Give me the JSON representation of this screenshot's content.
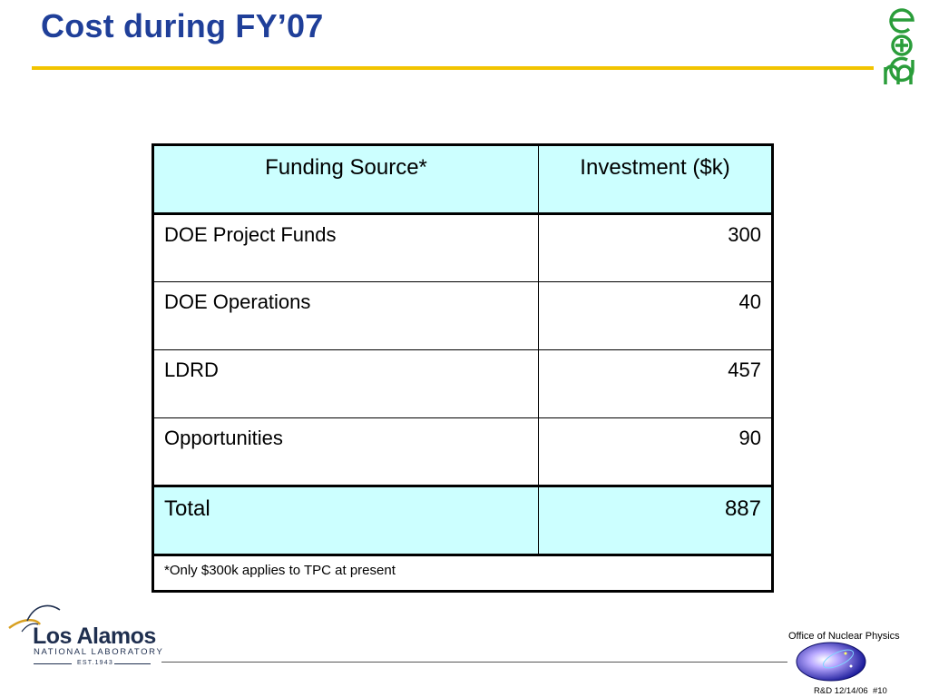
{
  "header": {
    "title": "Cost during FY’07",
    "logo_icon": "edm-logo-icon",
    "logo_letters": [
      "e",
      "+",
      "d",
      "m"
    ],
    "accent_color": "#f2c400",
    "title_color": "#1f3f99",
    "logo_color": "#2a9d3a"
  },
  "table": {
    "columns": [
      "Funding Source*",
      "Investment ($k)"
    ],
    "rows": [
      {
        "source": "DOE Project Funds",
        "investment": "300"
      },
      {
        "source": "DOE Operations",
        "investment": "40"
      },
      {
        "source": "LDRD",
        "investment": "457"
      },
      {
        "source": "Opportunities",
        "investment": "90"
      }
    ],
    "total": {
      "label": "Total",
      "value": "887"
    },
    "footnote": "*Only $300k applies to TPC at present",
    "header_fill": "#ccffff"
  },
  "footer": {
    "lab_name_line1": "Los Alamos",
    "lab_name_line2": "NATIONAL LABORATORY",
    "lab_est": "EST.1943",
    "office": "Office of Nuclear Physics",
    "slide_ref": "R&D 12/14/06  #10",
    "seal_icon": "doe-seal-icon"
  }
}
